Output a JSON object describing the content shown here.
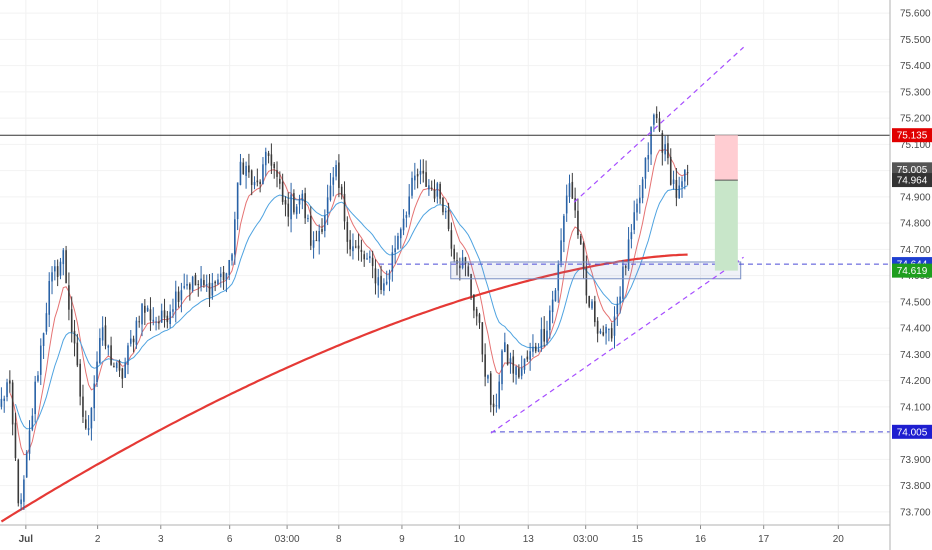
{
  "chart_data": {
    "type": "candlestick",
    "y_axis": {
      "position": "right",
      "range": [
        73.65,
        75.65
      ],
      "ticks": [
        "75.600",
        "75.500",
        "75.400",
        "75.300",
        "75.200",
        "75.100",
        "75.000",
        "74.900",
        "74.800",
        "74.700",
        "74.600",
        "74.500",
        "74.400",
        "74.300",
        "74.200",
        "74.100",
        "74.000",
        "73.900",
        "73.800",
        "73.700"
      ],
      "tick_values": [
        75.6,
        75.5,
        75.4,
        75.3,
        75.2,
        75.1,
        75.0,
        74.9,
        74.8,
        74.7,
        74.6,
        74.5,
        74.4,
        74.3,
        74.2,
        74.1,
        74.0,
        73.9,
        73.8,
        73.7
      ]
    },
    "x_axis": {
      "range": [
        0,
        15.5
      ],
      "tick_labels": [
        "Jul",
        "2",
        "3",
        "6",
        "03:00",
        "8",
        "9",
        "10",
        "13",
        "03:00",
        "15",
        "16",
        "17",
        "20"
      ],
      "tick_positions": [
        0.45,
        1.7,
        2.8,
        4.0,
        5.0,
        5.9,
        7.0,
        8.0,
        9.2,
        10.2,
        11.1,
        12.2,
        13.3,
        14.6
      ]
    },
    "colors": {
      "up": "#2962a6",
      "down": "#3a3a3a",
      "ema_fast": "#e57373",
      "ema_slow": "#4fa3e0",
      "sma_long": "#e53935",
      "channel": "#a64dff",
      "level": "#4b4bd6",
      "resistance": "#333333",
      "stop_zone": "#ffcdd2",
      "target_zone": "#c8e6c9",
      "grid": "#f2f2f2"
    },
    "resistance_line": 75.135,
    "support_level": 74.644,
    "low_level": 74.005,
    "price_scale_badges": [
      {
        "label": "75.135",
        "value": 75.135,
        "color": "#e00000"
      },
      {
        "label": "75.005",
        "value": 75.005,
        "color": "#555555"
      },
      {
        "label": "74.964",
        "value": 74.964,
        "color": "#333333"
      },
      {
        "label": "74.644",
        "value": 74.644,
        "color": "#1e3fd0"
      },
      {
        "label": "74.619",
        "value": 74.619,
        "color": "#1e9e1e"
      },
      {
        "label": "74.005",
        "value": 74.005,
        "color": "#1e1ed0"
      }
    ],
    "trade_setup": {
      "entry": 74.964,
      "stop": 75.135,
      "target": 74.619,
      "x_start": 12.45,
      "x_end": 12.85
    },
    "channel": {
      "lower": [
        [
          8.55,
          74.0
        ],
        [
          12.95,
          74.67
        ]
      ],
      "upper": [
        [
          10.0,
          74.88
        ],
        [
          12.95,
          75.47
        ]
      ]
    },
    "support_box": [
      [
        7.85,
        74.652
      ],
      [
        12.9,
        74.588
      ]
    ],
    "support_dash_x": [
      6.6,
      15.4
    ],
    "low_dash_x": [
      8.55,
      15.4
    ],
    "anchors": [
      [
        0.0,
        74.1
      ],
      [
        0.15,
        74.2
      ],
      [
        0.35,
        73.68
      ],
      [
        0.6,
        74.15
      ],
      [
        0.85,
        74.55
      ],
      [
        1.1,
        74.68
      ],
      [
        1.3,
        74.3
      ],
      [
        1.5,
        73.98
      ],
      [
        1.75,
        74.38
      ],
      [
        2.1,
        74.2
      ],
      [
        2.45,
        74.48
      ],
      [
        2.8,
        74.42
      ],
      [
        3.2,
        74.58
      ],
      [
        3.6,
        74.55
      ],
      [
        4.0,
        74.62
      ],
      [
        4.2,
        75.05
      ],
      [
        4.45,
        74.92
      ],
      [
        4.7,
        75.07
      ],
      [
        4.95,
        74.85
      ],
      [
        5.25,
        74.9
      ],
      [
        5.45,
        74.7
      ],
      [
        5.85,
        74.98
      ],
      [
        6.1,
        74.72
      ],
      [
        6.4,
        74.65
      ],
      [
        6.7,
        74.55
      ],
      [
        6.95,
        74.78
      ],
      [
        7.25,
        74.98
      ],
      [
        7.45,
        74.95
      ],
      [
        7.7,
        74.9
      ],
      [
        7.9,
        74.7
      ],
      [
        8.1,
        74.63
      ],
      [
        8.3,
        74.45
      ],
      [
        8.45,
        74.25
      ],
      [
        8.6,
        74.05
      ],
      [
        8.75,
        74.32
      ],
      [
        9.0,
        74.22
      ],
      [
        9.25,
        74.3
      ],
      [
        9.5,
        74.4
      ],
      [
        9.7,
        74.58
      ],
      [
        9.9,
        74.98
      ],
      [
        10.05,
        74.8
      ],
      [
        10.2,
        74.52
      ],
      [
        10.45,
        74.4
      ],
      [
        10.6,
        74.35
      ],
      [
        10.8,
        74.55
      ],
      [
        11.0,
        74.75
      ],
      [
        11.2,
        74.96
      ],
      [
        11.4,
        75.22
      ],
      [
        11.6,
        75.05
      ],
      [
        11.8,
        74.9
      ],
      [
        12.0,
        75.0
      ]
    ]
  }
}
